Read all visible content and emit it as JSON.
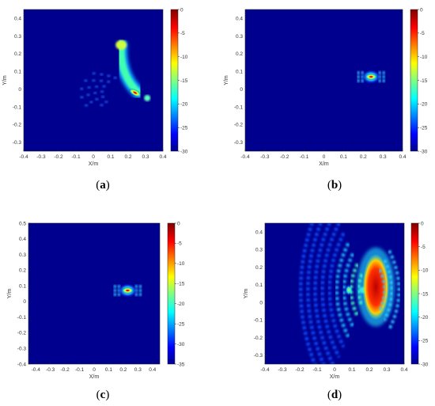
{
  "figure": {
    "charts": [
      {
        "type": "heatmap",
        "label_prefix": "(",
        "label_letter": "a",
        "label_suffix": ")",
        "xlabel": "X/m",
        "ylabel": "Y/m",
        "xlim": [
          -0.4,
          0.4
        ],
        "ylim": [
          -0.35,
          0.45
        ],
        "xticks": [
          "-0.4",
          "-0.3",
          "-0.2",
          "-0.1",
          "0",
          "0.1",
          "0.2",
          "0.3",
          "0.4"
        ],
        "yticks": [
          "0.4",
          "0.3",
          "0.2",
          "0.1",
          "0",
          "-0.1",
          "-0.2",
          "-0.3"
        ],
        "colorbar_ticks": [
          "0",
          "-5",
          "-10",
          "-15",
          "-20",
          "-25",
          "-30"
        ],
        "colorbar_range": [
          -30,
          0
        ]
      },
      {
        "type": "heatmap",
        "label_prefix": "(",
        "label_letter": "b",
        "label_suffix": ")",
        "xlabel": "X/m",
        "ylabel": "Y/m",
        "xlim": [
          -0.4,
          0.4
        ],
        "ylim": [
          -0.35,
          0.45
        ],
        "xticks": [
          "-0.4",
          "-0.3",
          "-0.2",
          "-0.1",
          "0",
          "0.1",
          "0.2",
          "0.3",
          "0.4"
        ],
        "yticks": [
          "0.4",
          "0.3",
          "0.2",
          "0.1",
          "0",
          "-0.1",
          "-0.2",
          "-0.3"
        ],
        "colorbar_ticks": [
          "0",
          "-5",
          "-10",
          "-15",
          "-20",
          "-25",
          "-30"
        ],
        "colorbar_range": [
          -30,
          0
        ]
      },
      {
        "type": "heatmap",
        "label_prefix": "(",
        "label_letter": "c",
        "label_suffix": ")",
        "xlabel": "X/m",
        "ylabel": "Y/m",
        "xlim": [
          -0.45,
          0.45
        ],
        "ylim": [
          -0.4,
          0.5
        ],
        "xticks": [
          "-0.4",
          "-0.3",
          "-0.2",
          "-0.1",
          "0",
          "0.1",
          "0.2",
          "0.3",
          "0.4"
        ],
        "yticks": [
          "0.5",
          "0.4",
          "0.3",
          "0.2",
          "0.1",
          "0",
          "-0.1",
          "-0.2",
          "-0.3",
          "-0.4"
        ],
        "colorbar_ticks": [
          "0",
          "-5",
          "-10",
          "-15",
          "-20",
          "-25",
          "-30",
          "-35"
        ],
        "colorbar_range": [
          -35,
          0
        ]
      },
      {
        "type": "heatmap",
        "label_prefix": "(",
        "label_letter": "d",
        "label_suffix": ")",
        "xlabel": "X/m",
        "ylabel": "Y/m",
        "xlim": [
          -0.4,
          0.4
        ],
        "ylim": [
          -0.35,
          0.45
        ],
        "xticks": [
          "-0.4",
          "-0.3",
          "-0.2",
          "-0.1",
          "0",
          "0.1",
          "0.2",
          "0.3",
          "0.4"
        ],
        "yticks": [
          "0.4",
          "0.3",
          "0.2",
          "0.1",
          "0",
          "-0.1",
          "-0.2",
          "-0.3"
        ],
        "colorbar_ticks": [
          "0",
          "-5",
          "-10",
          "-15",
          "-20",
          "-25",
          "-30"
        ],
        "colorbar_range": [
          -30,
          0
        ]
      }
    ]
  },
  "chart_data": [
    {
      "type": "heatmap",
      "xlabel": "X/m",
      "ylabel": "Y/m",
      "xlim": [
        -0.4,
        0.4
      ],
      "ylim": [
        -0.35,
        0.45
      ],
      "colormap": "jet",
      "colorbar_range": [
        -30,
        0
      ],
      "features": [
        {
          "shape": "arc",
          "from": [
            0.16,
            0.25
          ],
          "to": [
            0.26,
            -0.02
          ],
          "level_db": -10
        },
        {
          "shape": "hotspot",
          "x": 0.24,
          "y": -0.02,
          "level_db": -1
        }
      ]
    },
    {
      "type": "heatmap",
      "xlabel": "X/m",
      "ylabel": "Y/m",
      "xlim": [
        -0.4,
        0.4
      ],
      "ylim": [
        -0.35,
        0.45
      ],
      "colormap": "jet",
      "colorbar_range": [
        -30,
        0
      ],
      "features": [
        {
          "shape": "hotspot",
          "x": 0.24,
          "y": 0.07,
          "level_db": 0
        }
      ]
    },
    {
      "type": "heatmap",
      "xlabel": "X/m",
      "ylabel": "Y/m",
      "xlim": [
        -0.45,
        0.45
      ],
      "ylim": [
        -0.4,
        0.5
      ],
      "colormap": "jet",
      "colorbar_range": [
        -35,
        0
      ],
      "features": [
        {
          "shape": "hotspot",
          "x": 0.23,
          "y": 0.07,
          "level_db": 0
        }
      ]
    },
    {
      "type": "heatmap",
      "xlabel": "X/m",
      "ylabel": "Y/m",
      "xlim": [
        -0.4,
        0.4
      ],
      "ylim": [
        -0.35,
        0.45
      ],
      "colormap": "jet",
      "colorbar_range": [
        -30,
        0
      ],
      "features": [
        {
          "shape": "crescent",
          "x": 0.21,
          "y": 0.07,
          "level_db": -1
        },
        {
          "shape": "fringes",
          "x_from": -0.35,
          "x_to": 0.4,
          "level_db": -15
        }
      ]
    }
  ]
}
